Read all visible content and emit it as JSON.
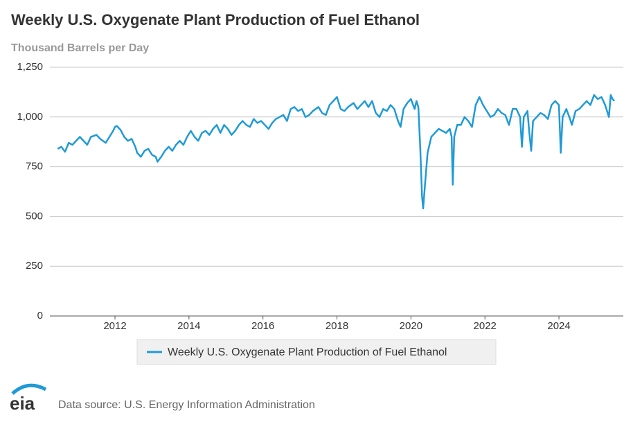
{
  "chart_data": {
    "type": "line",
    "title": "Weekly U.S. Oxygenate Plant Production of Fuel Ethanol",
    "subtitle": "Thousand Barrels per Day",
    "source": "Data source: U.S. Energy Information Administration",
    "logo": "eia",
    "x": [
      2010.45,
      2010.55,
      2010.65,
      2010.75,
      2010.85,
      2010.95,
      2011.05,
      2011.15,
      2011.25,
      2011.35,
      2011.5,
      2011.6,
      2011.75,
      2011.85,
      2011.95,
      2012.0,
      2012.05,
      2012.15,
      2012.25,
      2012.35,
      2012.45,
      2012.55,
      2012.6,
      2012.7,
      2012.8,
      2012.9,
      2013.0,
      2013.1,
      2013.15,
      2013.25,
      2013.35,
      2013.45,
      2013.55,
      2013.65,
      2013.75,
      2013.85,
      2013.95,
      2014.05,
      2014.15,
      2014.25,
      2014.35,
      2014.45,
      2014.55,
      2014.65,
      2014.75,
      2014.85,
      2014.95,
      2015.05,
      2015.15,
      2015.25,
      2015.35,
      2015.45,
      2015.55,
      2015.65,
      2015.75,
      2015.85,
      2015.95,
      2016.05,
      2016.15,
      2016.25,
      2016.35,
      2016.45,
      2016.55,
      2016.65,
      2016.75,
      2016.85,
      2016.95,
      2017.05,
      2017.15,
      2017.25,
      2017.35,
      2017.5,
      2017.6,
      2017.7,
      2017.8,
      2017.9,
      2018.0,
      2018.1,
      2018.2,
      2018.3,
      2018.45,
      2018.55,
      2018.65,
      2018.75,
      2018.85,
      2018.95,
      2019.05,
      2019.15,
      2019.25,
      2019.35,
      2019.45,
      2019.55,
      2019.65,
      2019.72,
      2019.8,
      2019.9,
      2020.0,
      2020.1,
      2020.15,
      2020.2,
      2020.25,
      2020.3,
      2020.33,
      2020.38,
      2020.45,
      2020.55,
      2020.65,
      2020.75,
      2020.85,
      2020.95,
      2021.05,
      2021.1,
      2021.13,
      2021.17,
      2021.25,
      2021.35,
      2021.45,
      2021.55,
      2021.65,
      2021.75,
      2021.85,
      2021.95,
      2022.05,
      2022.15,
      2022.25,
      2022.35,
      2022.45,
      2022.55,
      2022.65,
      2022.75,
      2022.85,
      2022.95,
      2023.0,
      2023.05,
      2023.15,
      2023.2,
      2023.25,
      2023.3,
      2023.4,
      2023.5,
      2023.6,
      2023.7,
      2023.8,
      2023.9,
      2024.0,
      2024.05,
      2024.1,
      2024.2,
      2024.3,
      2024.35,
      2024.45,
      2024.55,
      2024.65,
      2024.75,
      2024.85,
      2024.95,
      2025.05,
      2025.15,
      2025.25,
      2025.35,
      2025.4,
      2025.45,
      2025.5
    ],
    "series": [
      {
        "name": "Weekly U.S. Oxygenate Plant Production of Fuel Ethanol",
        "color": "#1f9ad6",
        "values": [
          840,
          850,
          825,
          870,
          860,
          880,
          900,
          880,
          860,
          900,
          910,
          890,
          870,
          900,
          930,
          950,
          955,
          935,
          900,
          880,
          890,
          850,
          820,
          800,
          830,
          840,
          810,
          800,
          775,
          800,
          830,
          850,
          830,
          860,
          880,
          860,
          900,
          930,
          900,
          880,
          920,
          930,
          910,
          940,
          960,
          920,
          960,
          940,
          910,
          930,
          960,
          980,
          960,
          950,
          990,
          970,
          980,
          960,
          940,
          970,
          990,
          1000,
          1010,
          980,
          1040,
          1050,
          1030,
          1040,
          1000,
          1010,
          1030,
          1050,
          1020,
          1010,
          1060,
          1080,
          1100,
          1040,
          1030,
          1050,
          1070,
          1040,
          1060,
          1080,
          1050,
          1080,
          1020,
          1000,
          1040,
          1030,
          1060,
          1040,
          980,
          950,
          1040,
          1070,
          1090,
          1040,
          1080,
          1050,
          850,
          600,
          540,
          660,
          820,
          900,
          920,
          940,
          930,
          920,
          940,
          900,
          660,
          900,
          960,
          960,
          1000,
          980,
          950,
          1060,
          1100,
          1060,
          1030,
          1000,
          1010,
          1040,
          1020,
          1010,
          960,
          1040,
          1040,
          1000,
          850,
          1000,
          1030,
          920,
          830,
          980,
          1000,
          1020,
          1010,
          990,
          1060,
          1080,
          1060,
          820,
          1000,
          1040,
          990,
          960,
          1030,
          1040,
          1060,
          1080,
          1060,
          1110,
          1090,
          1100,
          1060,
          1000,
          1110,
          1090,
          1080
        ]
      }
    ],
    "xlim": [
      2010.24,
      2025.74
    ],
    "xticks": [
      2012,
      2014,
      2016,
      2018,
      2020,
      2022,
      2024
    ],
    "ylim": [
      0,
      1250
    ],
    "yticks": [
      0,
      250,
      500,
      750,
      {
        "value": 1000,
        "label": "1,000"
      },
      {
        "value": 1250,
        "label": "1,250"
      }
    ],
    "grid": true,
    "legend": "bottom"
  }
}
